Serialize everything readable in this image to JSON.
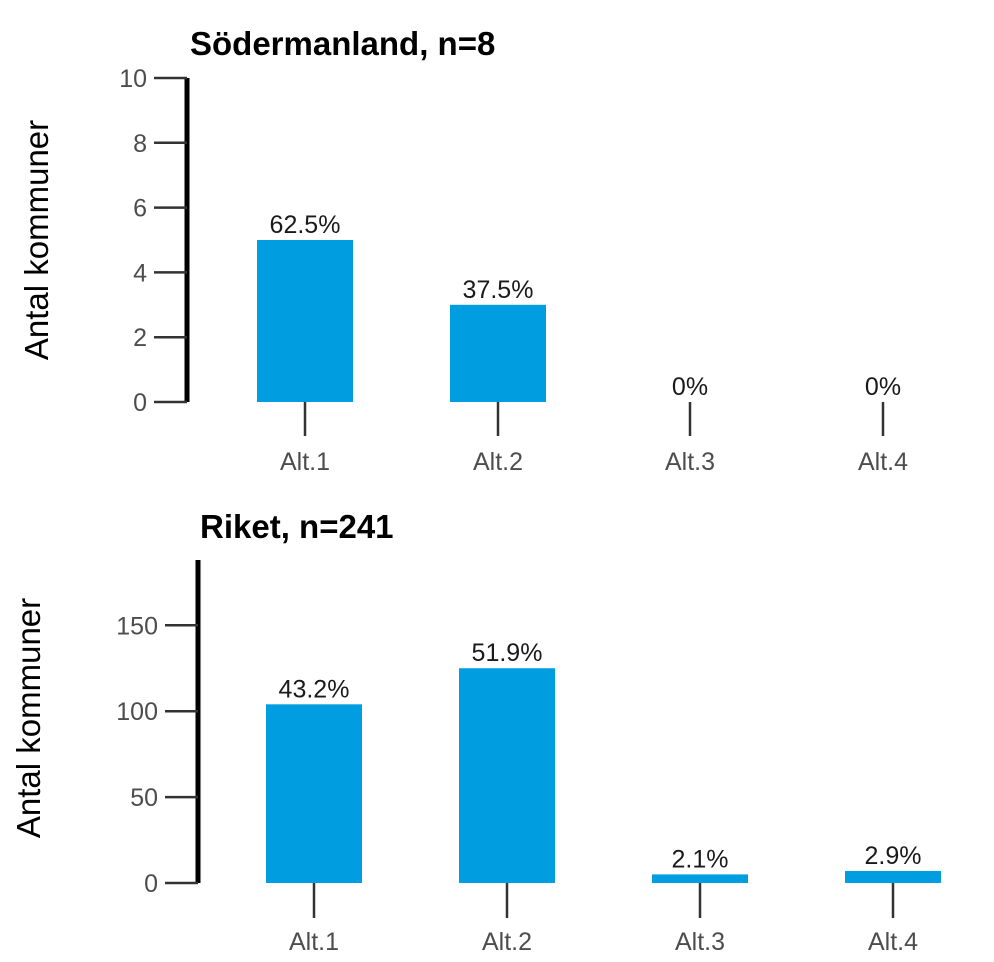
{
  "chart_data": [
    {
      "type": "bar",
      "title": "Södermanland, n=8",
      "ylabel": "Antal kommuner",
      "xlabel": "",
      "categories": [
        "Alt.1",
        "Alt.2",
        "Alt.3",
        "Alt.4"
      ],
      "values": [
        5,
        3,
        0,
        0
      ],
      "value_labels": [
        "62.5%",
        "37.5%",
        "0%",
        "0%"
      ],
      "ylim": [
        0,
        10
      ],
      "yticks": [
        0,
        2,
        4,
        6,
        8,
        10
      ],
      "bar_color": "#009ee0",
      "grid": false
    },
    {
      "type": "bar",
      "title": "Riket, n=241",
      "ylabel": "Antal kommuner",
      "xlabel": "",
      "categories": [
        "Alt.1",
        "Alt.2",
        "Alt.3",
        "Alt.4"
      ],
      "values": [
        104,
        125,
        5,
        7
      ],
      "value_labels": [
        "43.2%",
        "51.9%",
        "2.1%",
        "2.9%"
      ],
      "ylim": [
        0,
        188
      ],
      "yticks": [
        0,
        50,
        100,
        150
      ],
      "bar_color": "#009ee0",
      "grid": false
    }
  ]
}
